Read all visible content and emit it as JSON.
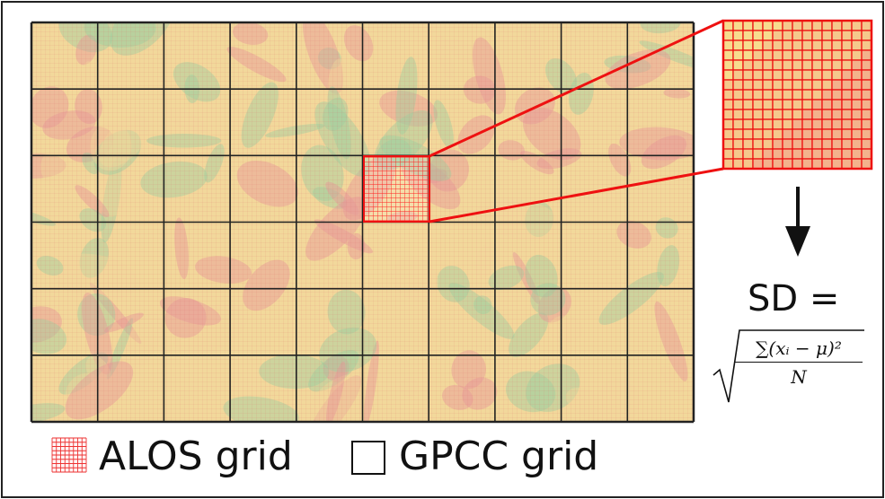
{
  "colors": {
    "alos": "#ee3333",
    "gpcc": "#222222",
    "terrain_low": "#9fcf9f",
    "terrain_mid": "#f2d89b",
    "terrain_high": "#e79a9a",
    "highlight": "#ee1111"
  },
  "legend": {
    "alos_label": "ALOS grid",
    "gpcc_label": "GPCC grid"
  },
  "formula": {
    "lhs": "SD =",
    "numerator": "∑(xᵢ − μ)²",
    "denominator": "N"
  },
  "icons": [
    "alos-swatch-icon",
    "gpcc-swatch-icon",
    "down-arrow-icon",
    "sqrt-icon"
  ]
}
